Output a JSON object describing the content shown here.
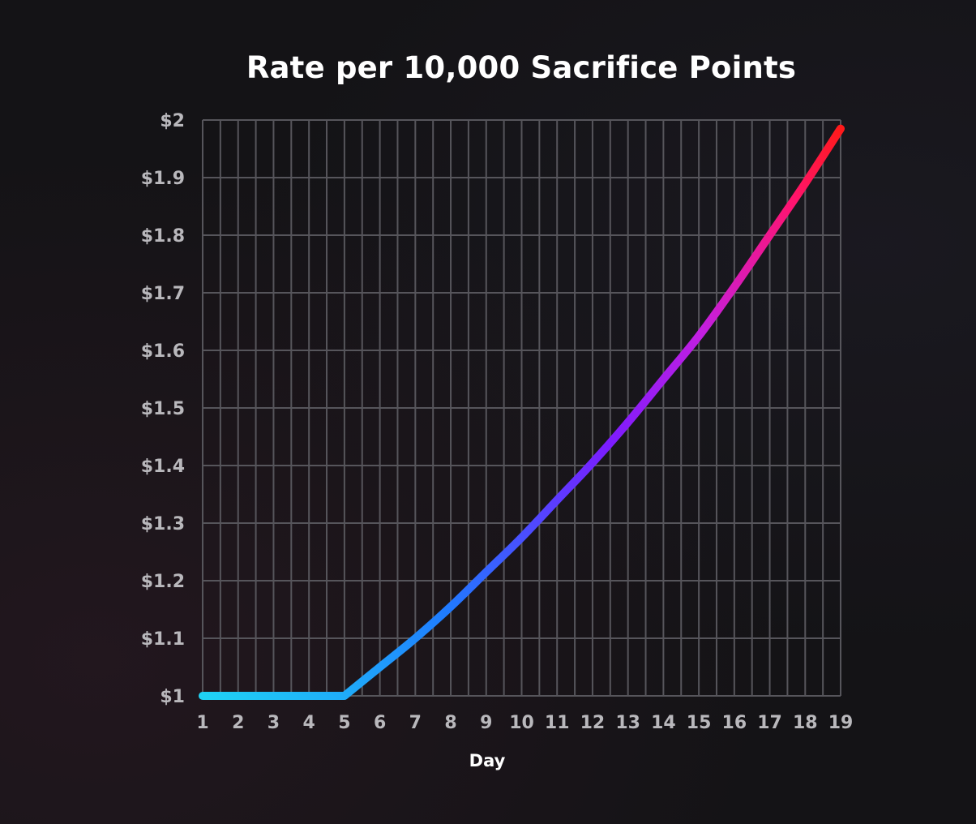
{
  "chart_data": {
    "type": "line",
    "title": "Rate per 10,000 Sacrifice Points",
    "xlabel": "Day",
    "ylabel": "",
    "x": [
      1,
      2,
      3,
      4,
      5,
      6,
      7,
      8,
      9,
      10,
      11,
      12,
      13,
      14,
      15,
      16,
      17,
      18,
      19
    ],
    "series": [
      {
        "values": [
          1.0,
          1.0,
          1.0,
          1.0,
          1.0,
          1.05,
          1.1,
          1.155,
          1.215,
          1.275,
          1.34,
          1.405,
          1.475,
          1.55,
          1.625,
          1.71,
          1.8,
          1.89,
          1.985
        ]
      }
    ],
    "xlim": [
      1,
      19
    ],
    "ylim": [
      1,
      2
    ],
    "x_tick_labels": [
      "1",
      "2",
      "3",
      "4",
      "5",
      "6",
      "7",
      "8",
      "9",
      "10",
      "11",
      "12",
      "13",
      "14",
      "15",
      "16",
      "17",
      "18",
      "19"
    ],
    "y_tick_labels": [
      "$1",
      "$1.1",
      "$1.2",
      "$1.3",
      "$1.4",
      "$1.5",
      "$1.6",
      "$1.7",
      "$1.8",
      "$1.9",
      "$2"
    ],
    "grid": true,
    "legend": "none",
    "line_gradient_colors": [
      "#1fd3f5",
      "#1f7bff",
      "#7b1cff",
      "#c31fe0",
      "#ff1470",
      "#ff1a1a"
    ],
    "colors": {
      "background": "#141316",
      "grid": "#56555b",
      "tick_text": "#b9b8bc",
      "title_text": "#ffffff"
    }
  }
}
